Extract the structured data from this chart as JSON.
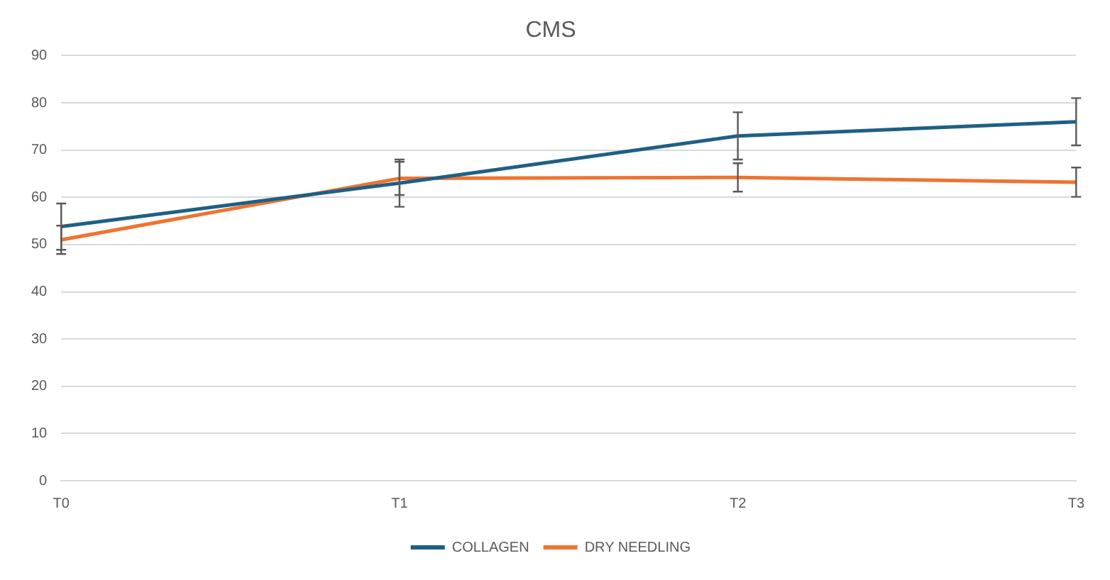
{
  "chart_data": {
    "type": "line",
    "title": "CMS",
    "categories": [
      "T0",
      "T1",
      "T2",
      "T3"
    ],
    "series": [
      {
        "name": "COLLAGEN",
        "color": "#1f5f86",
        "values": [
          53.8,
          63,
          73,
          76
        ],
        "errors": [
          4.9,
          5,
          5,
          5
        ]
      },
      {
        "name": "DRY NEEDLING",
        "color": "#ef7331",
        "values": [
          51,
          64,
          64.2,
          63.2
        ],
        "errors": [
          3,
          3.5,
          3,
          3.1
        ]
      }
    ],
    "ylim": [
      0,
      90
    ],
    "yticks": [
      0,
      10,
      20,
      30,
      40,
      50,
      60,
      70,
      80,
      90
    ],
    "grid": "y",
    "legend": "bottom",
    "marker": "none",
    "line_style": "solid"
  }
}
